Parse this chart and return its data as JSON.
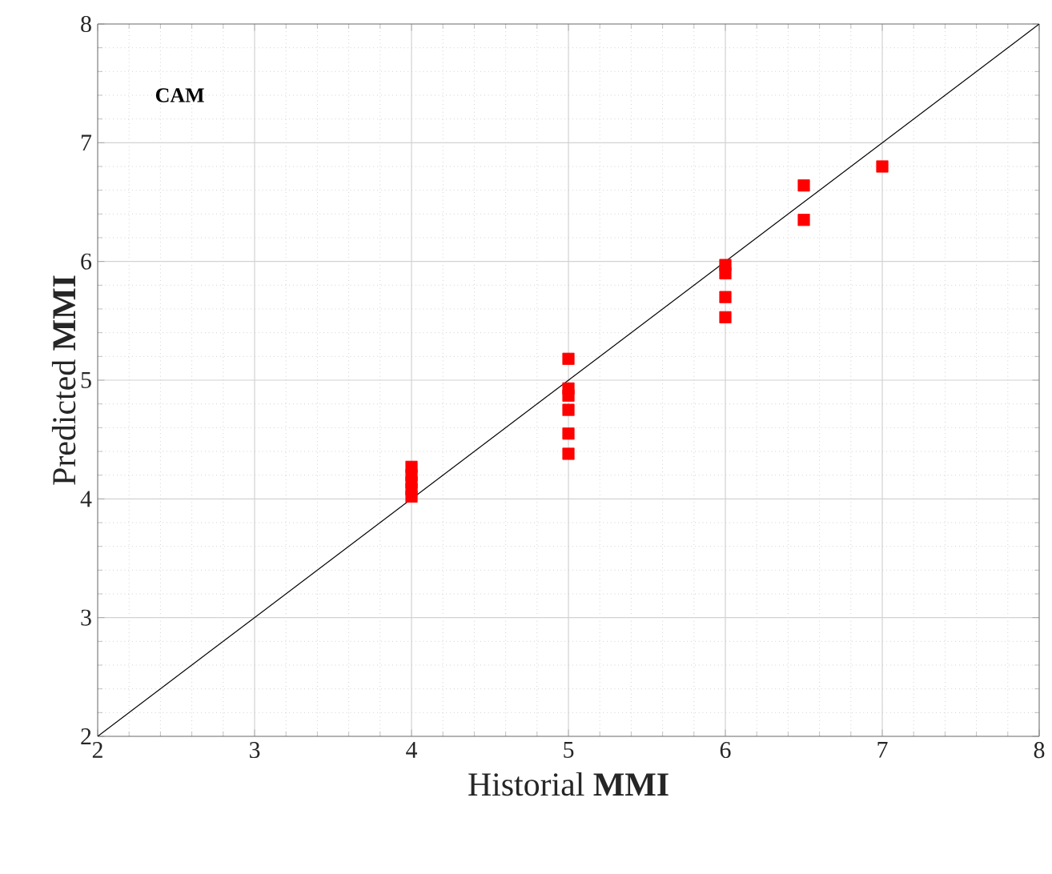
{
  "chart_data": {
    "type": "scatter",
    "xlabel": "Historial **MMI**",
    "ylabel": "Predicted **MMI**",
    "annotations": [
      "CAM"
    ],
    "xlim": [
      2,
      8
    ],
    "ylim": [
      2,
      8
    ],
    "xticks": [
      2,
      3,
      4,
      5,
      6,
      7,
      8
    ],
    "yticks": [
      2,
      3,
      4,
      5,
      6,
      7,
      8
    ],
    "grid": true,
    "series": [
      {
        "color": "#ff0000",
        "marker": "square",
        "x": [
          4,
          4,
          4,
          4,
          4,
          5,
          5,
          5,
          5,
          5,
          5,
          6,
          6,
          6,
          6,
          6.5,
          6.5,
          7
        ],
        "values": [
          4.02,
          4.08,
          4.14,
          4.2,
          4.27,
          5.18,
          4.93,
          4.87,
          4.75,
          4.55,
          4.38,
          5.97,
          5.9,
          5.7,
          5.53,
          6.64,
          6.35,
          6.8
        ]
      },
      {
        "type": "line",
        "color": "#000000",
        "x": [
          2,
          8
        ],
        "values": [
          2,
          8
        ]
      }
    ]
  }
}
